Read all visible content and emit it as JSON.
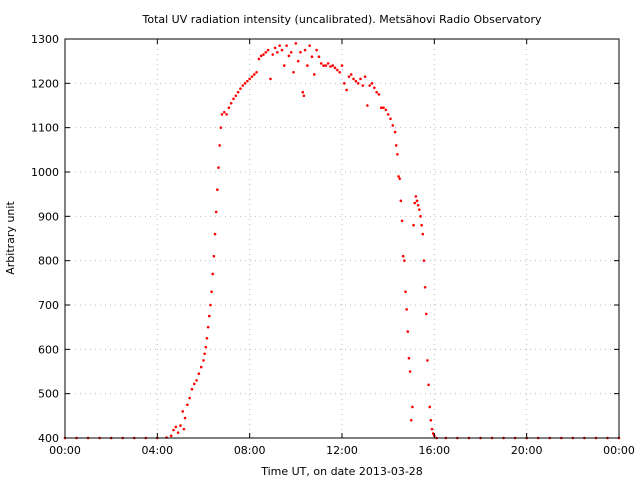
{
  "chart_data": {
    "type": "scatter",
    "title": "Total UV radiation intensity (uncalibrated). Metsähovi Radio Observatory",
    "xlabel": "Time UT, on date 2013-03-28",
    "ylabel": "Arbitrary unit",
    "xlim": [
      0,
      24
    ],
    "ylim": [
      400,
      1300
    ],
    "x_ticks": [
      {
        "value": 0,
        "label": "00:00"
      },
      {
        "value": 4,
        "label": "04:00"
      },
      {
        "value": 8,
        "label": "08:00"
      },
      {
        "value": 12,
        "label": "12:00"
      },
      {
        "value": 16,
        "label": "16:00"
      },
      {
        "value": 20,
        "label": "20:00"
      },
      {
        "value": 24,
        "label": "00:00"
      }
    ],
    "y_ticks": [
      {
        "value": 400,
        "label": "400"
      },
      {
        "value": 500,
        "label": "500"
      },
      {
        "value": 600,
        "label": "600"
      },
      {
        "value": 700,
        "label": "700"
      },
      {
        "value": 800,
        "label": "800"
      },
      {
        "value": 900,
        "label": "900"
      },
      {
        "value": 1000,
        "label": "1000"
      },
      {
        "value": 1100,
        "label": "1100"
      },
      {
        "value": 1200,
        "label": "1200"
      },
      {
        "value": 1300,
        "label": "1300"
      }
    ],
    "grid": true,
    "point_color": "#ff0000",
    "series": [
      {
        "points": [
          [
            0.0,
            400
          ],
          [
            0.5,
            400
          ],
          [
            1.0,
            400
          ],
          [
            1.5,
            400
          ],
          [
            2.0,
            400
          ],
          [
            2.5,
            400
          ],
          [
            3.0,
            400
          ],
          [
            3.5,
            400
          ],
          [
            4.0,
            400
          ],
          [
            4.4,
            401
          ],
          [
            4.6,
            405
          ],
          [
            4.7,
            418
          ],
          [
            4.8,
            425
          ],
          [
            4.9,
            412
          ],
          [
            5.0,
            428
          ],
          [
            5.1,
            460
          ],
          [
            5.15,
            420
          ],
          [
            5.2,
            445
          ],
          [
            5.3,
            475
          ],
          [
            5.4,
            490
          ],
          [
            5.5,
            510
          ],
          [
            5.6,
            522
          ],
          [
            5.7,
            530
          ],
          [
            5.8,
            545
          ],
          [
            5.9,
            560
          ],
          [
            6.0,
            575
          ],
          [
            6.05,
            590
          ],
          [
            6.1,
            605
          ],
          [
            6.15,
            625
          ],
          [
            6.2,
            650
          ],
          [
            6.25,
            675
          ],
          [
            6.3,
            700
          ],
          [
            6.35,
            730
          ],
          [
            6.4,
            770
          ],
          [
            6.45,
            810
          ],
          [
            6.5,
            860
          ],
          [
            6.55,
            910
          ],
          [
            6.6,
            960
          ],
          [
            6.65,
            1010
          ],
          [
            6.7,
            1060
          ],
          [
            6.75,
            1100
          ],
          [
            6.8,
            1130
          ],
          [
            6.9,
            1135
          ],
          [
            7.0,
            1130
          ],
          [
            7.1,
            1145
          ],
          [
            7.2,
            1155
          ],
          [
            7.3,
            1165
          ],
          [
            7.4,
            1172
          ],
          [
            7.5,
            1180
          ],
          [
            7.6,
            1188
          ],
          [
            7.7,
            1195
          ],
          [
            7.8,
            1200
          ],
          [
            7.9,
            1205
          ],
          [
            8.0,
            1210
          ],
          [
            8.1,
            1215
          ],
          [
            8.2,
            1220
          ],
          [
            8.3,
            1225
          ],
          [
            8.4,
            1255
          ],
          [
            8.5,
            1262
          ],
          [
            8.6,
            1265
          ],
          [
            8.7,
            1270
          ],
          [
            8.8,
            1275
          ],
          [
            8.9,
            1210
          ],
          [
            9.0,
            1265
          ],
          [
            9.1,
            1280
          ],
          [
            9.2,
            1270
          ],
          [
            9.3,
            1285
          ],
          [
            9.4,
            1275
          ],
          [
            9.5,
            1240
          ],
          [
            9.6,
            1285
          ],
          [
            9.7,
            1262
          ],
          [
            9.8,
            1270
          ],
          [
            9.9,
            1225
          ],
          [
            10.0,
            1290
          ],
          [
            10.1,
            1250
          ],
          [
            10.2,
            1270
          ],
          [
            10.3,
            1180
          ],
          [
            10.35,
            1172
          ],
          [
            10.4,
            1275
          ],
          [
            10.5,
            1240
          ],
          [
            10.6,
            1285
          ],
          [
            10.7,
            1260
          ],
          [
            10.8,
            1220
          ],
          [
            10.9,
            1275
          ],
          [
            11.0,
            1260
          ],
          [
            11.1,
            1245
          ],
          [
            11.2,
            1240
          ],
          [
            11.3,
            1240
          ],
          [
            11.4,
            1245
          ],
          [
            11.5,
            1238
          ],
          [
            11.6,
            1240
          ],
          [
            11.7,
            1235
          ],
          [
            11.8,
            1230
          ],
          [
            11.9,
            1225
          ],
          [
            12.0,
            1240
          ],
          [
            12.1,
            1200
          ],
          [
            12.2,
            1185
          ],
          [
            12.3,
            1215
          ],
          [
            12.4,
            1220
          ],
          [
            12.5,
            1210
          ],
          [
            12.6,
            1205
          ],
          [
            12.7,
            1200
          ],
          [
            12.8,
            1210
          ],
          [
            12.9,
            1195
          ],
          [
            13.0,
            1215
          ],
          [
            13.1,
            1150
          ],
          [
            13.2,
            1195
          ],
          [
            13.3,
            1200
          ],
          [
            13.4,
            1190
          ],
          [
            13.5,
            1180
          ],
          [
            13.6,
            1175
          ],
          [
            13.7,
            1145
          ],
          [
            13.8,
            1145
          ],
          [
            13.9,
            1140
          ],
          [
            14.0,
            1130
          ],
          [
            14.1,
            1120
          ],
          [
            14.2,
            1105
          ],
          [
            14.3,
            1090
          ],
          [
            14.35,
            1060
          ],
          [
            14.4,
            1040
          ],
          [
            14.45,
            990
          ],
          [
            14.5,
            985
          ],
          [
            14.55,
            935
          ],
          [
            14.6,
            890
          ],
          [
            14.65,
            810
          ],
          [
            14.7,
            800
          ],
          [
            14.75,
            730
          ],
          [
            14.8,
            690
          ],
          [
            14.85,
            640
          ],
          [
            14.9,
            580
          ],
          [
            14.95,
            550
          ],
          [
            15.0,
            440
          ],
          [
            15.05,
            470
          ],
          [
            15.1,
            880
          ],
          [
            15.15,
            930
          ],
          [
            15.2,
            945
          ],
          [
            15.25,
            935
          ],
          [
            15.3,
            925
          ],
          [
            15.35,
            915
          ],
          [
            15.4,
            900
          ],
          [
            15.45,
            880
          ],
          [
            15.5,
            860
          ],
          [
            15.55,
            800
          ],
          [
            15.6,
            740
          ],
          [
            15.65,
            680
          ],
          [
            15.7,
            575
          ],
          [
            15.75,
            520
          ],
          [
            15.8,
            470
          ],
          [
            15.85,
            440
          ],
          [
            15.9,
            420
          ],
          [
            15.95,
            410
          ],
          [
            16.0,
            405
          ],
          [
            16.1,
            400
          ],
          [
            16.5,
            400
          ],
          [
            17.0,
            400
          ],
          [
            17.5,
            400
          ],
          [
            18.0,
            400
          ],
          [
            18.5,
            400
          ],
          [
            19.0,
            400
          ],
          [
            19.5,
            400
          ],
          [
            20.0,
            400
          ],
          [
            20.5,
            400
          ],
          [
            21.0,
            400
          ],
          [
            21.5,
            400
          ],
          [
            22.0,
            400
          ],
          [
            22.5,
            400
          ],
          [
            23.0,
            400
          ],
          [
            23.5,
            400
          ],
          [
            24.0,
            400
          ]
        ]
      }
    ]
  }
}
